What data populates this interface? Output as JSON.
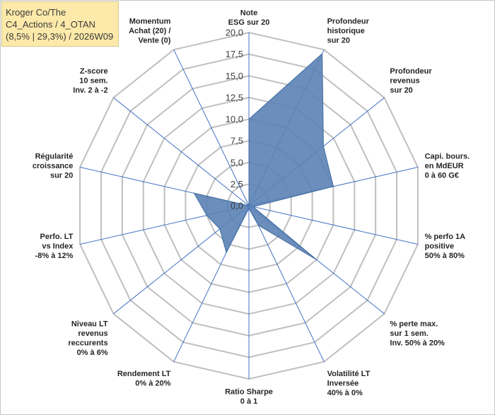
{
  "info_box": {
    "line1": "Kroger Co/The",
    "line2": "C4_Actions / 4_OTAN",
    "line3": "(8,5% | 29,3%) / 2026W09"
  },
  "colors": {
    "fill": "#5b82b6",
    "stroke": "#3f6b9f",
    "grid": "#bfbfbf",
    "spoke": "#4472c4",
    "box_bg": "#fde9a9"
  },
  "chart_data": {
    "type": "radar",
    "title": "",
    "rmin": 0,
    "rmax": 20,
    "ticks": [
      "0,0",
      "2,5",
      "5,0",
      "7,5",
      "10,0",
      "12,5",
      "15,0",
      "17,5",
      "20,0"
    ],
    "axes": [
      {
        "label": [
          "Note",
          "ESG sur 20"
        ],
        "value": 10
      },
      {
        "label": [
          "Profondeur",
          "historique",
          "sur 20"
        ],
        "value": 19.5
      },
      {
        "label": [
          "Profondeur",
          "revenus",
          "sur 20"
        ],
        "value": 11
      },
      {
        "label": [
          "Capi. bours.",
          "en MdEUR",
          "0 à 60 G€"
        ],
        "value": 10
      },
      {
        "label": [
          "% perfo 1A",
          "positive",
          "50% à 80%"
        ],
        "value": 0.5
      },
      {
        "label": [
          "% perte max.",
          "sur 1 sem.",
          "Inv. 50% à 20%"
        ],
        "value": 10
      },
      {
        "label": [
          "Volatilité LT",
          "Inversée",
          "40% à 0%"
        ],
        "value": 2.5
      },
      {
        "label": [
          "Ratio Sharpe",
          "0 à 1"
        ],
        "value": 0.3
      },
      {
        "label": [
          "Rendement LT",
          "0% à 20%"
        ],
        "value": 6
      },
      {
        "label": [
          "Niveau LT",
          "revenus",
          "reccurents",
          "0% à 6%"
        ],
        "value": 4.3
      },
      {
        "label": [
          "Perfo. LT",
          "vs Index",
          "-8% à 12%"
        ],
        "value": 5
      },
      {
        "label": [
          "Régularité",
          "croissance",
          "sur 20"
        ],
        "value": 6.5
      },
      {
        "label": [
          "Z-score",
          "10 sem.",
          "Inv. 2 à -2"
        ],
        "value": 0
      },
      {
        "label": [
          "Momentum",
          "Achat (20) /",
          "Vente (0)"
        ],
        "value": 0
      }
    ]
  }
}
